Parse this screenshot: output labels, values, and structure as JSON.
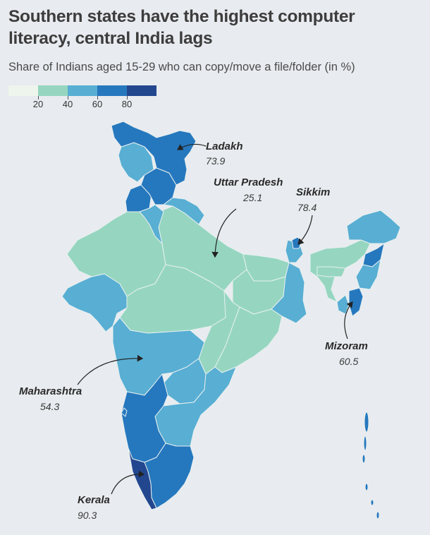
{
  "title": "Southern states have the highest computer literacy, central India lags",
  "subtitle": "Share of Indians aged 15-29 who can copy/move a file/folder (in %)",
  "legend": {
    "ticks": [
      "20",
      "40",
      "60",
      "80"
    ],
    "bins": [
      {
        "range": "0-20",
        "color": "#eef5ec"
      },
      {
        "range": "20-40",
        "color": "#96d6c0"
      },
      {
        "range": "40-60",
        "color": "#58aed3"
      },
      {
        "range": "60-80",
        "color": "#2678be"
      },
      {
        "range": "80-100",
        "color": "#23478f"
      }
    ]
  },
  "map_data": {
    "type": "choropleth",
    "region": "India (states and union territories)",
    "fills": {
      "jammu_kashmir": "#58aed3",
      "ladakh": "#2678be",
      "himachal_pradesh": "#2678be",
      "punjab": "#2678be",
      "haryana_delhi": "#58aed3",
      "uttarakhand": "#58aed3",
      "rajasthan": "#96d6c0",
      "uttar_pradesh": "#96d6c0",
      "bihar": "#96d6c0",
      "jharkhand": "#96d6c0",
      "madhya_pradesh": "#96d6c0",
      "chhattisgarh": "#96d6c0",
      "odisha": "#96d6c0",
      "west_bengal": "#58aed3",
      "gujarat": "#58aed3",
      "maharashtra": "#58aed3",
      "telangana": "#58aed3",
      "andhra_pradesh": "#58aed3",
      "karnataka": "#2678be",
      "goa": "#2678be",
      "tamil_nadu": "#2678be",
      "kerala": "#23478f",
      "sikkim": "#2678be",
      "assam": "#96d6c0",
      "meghalaya": "#96d6c0",
      "arunachal_pradesh": "#58aed3",
      "nagaland": "#2678be",
      "manipur": "#58aed3",
      "mizoram": "#2678be",
      "tripura": "#58aed3",
      "andaman_nicobar": "#2678be"
    }
  },
  "annotations": [
    {
      "state": "Ladakh",
      "value": "73.9"
    },
    {
      "state": "Uttar Pradesh",
      "value": "25.1"
    },
    {
      "state": "Sikkim",
      "value": "78.4"
    },
    {
      "state": "Mizoram",
      "value": "60.5"
    },
    {
      "state": "Maharashtra",
      "value": "54.3"
    },
    {
      "state": "Kerala",
      "value": "90.3"
    }
  ]
}
